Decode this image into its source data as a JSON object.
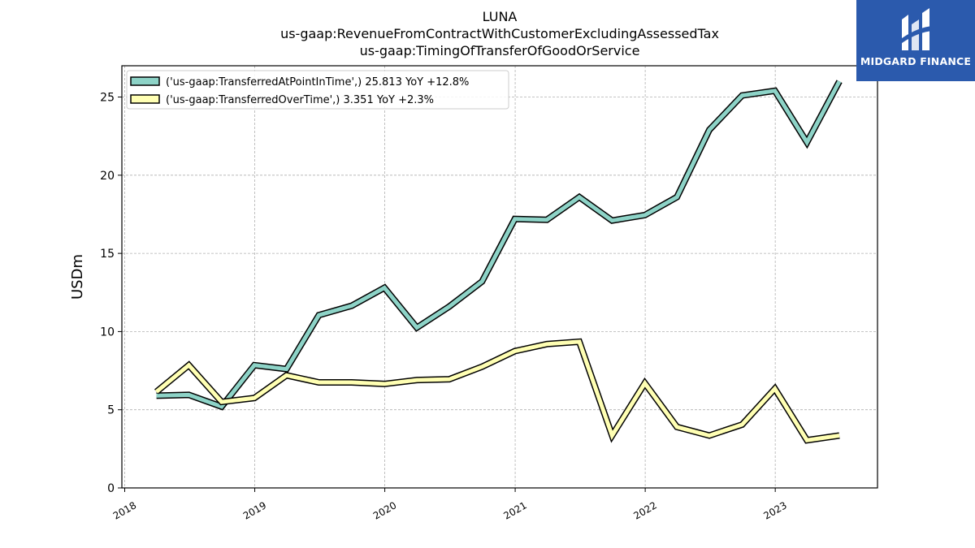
{
  "colors": {
    "series1": "#8dd3c7",
    "series2": "#ffffb3",
    "outline": "#000000",
    "grid": "#b0b0b0",
    "logo_bg": "#2b5aad"
  },
  "logo": {
    "text": "MIDGARD FINANCE",
    "icon": "midgard-finance-logo-mark"
  },
  "chart_data": {
    "type": "line",
    "title_lines": [
      "LUNA",
      "us-gaap:RevenueFromContractWithCustomerExcludingAssessedTax",
      "us-gaap:TimingOfTransferOfGoodOrService"
    ],
    "xlabel": "",
    "ylabel": "USDm",
    "xlim": [
      "2017-12-24",
      "2023-10-15"
    ],
    "ylim": [
      0,
      27
    ],
    "x_ticks": [
      "2018",
      "2019",
      "2020",
      "2021",
      "2022",
      "2023"
    ],
    "y_ticks": [
      "0",
      "5",
      "10",
      "15",
      "20",
      "25"
    ],
    "grid": true,
    "legend_position": "top-left",
    "x": [
      "2018-03-31",
      "2018-06-30",
      "2018-09-30",
      "2018-12-31",
      "2019-03-31",
      "2019-06-30",
      "2019-09-30",
      "2019-12-31",
      "2020-03-31",
      "2020-06-30",
      "2020-09-30",
      "2020-12-31",
      "2021-03-31",
      "2021-06-30",
      "2021-09-30",
      "2021-12-31",
      "2022-03-31",
      "2022-06-30",
      "2022-09-30",
      "2022-12-31",
      "2023-03-31",
      "2023-06-30"
    ],
    "series": [
      {
        "name": "('us-gaap:TransferredAtPointInTime',) 25.813 YoY +12.8%",
        "values": [
          5.9,
          5.95,
          5.2,
          7.85,
          7.6,
          11.05,
          11.65,
          12.8,
          10.25,
          11.6,
          13.2,
          17.2,
          17.15,
          18.6,
          17.1,
          17.45,
          18.6,
          22.9,
          25.1,
          25.4,
          22.1,
          26.0
        ]
      },
      {
        "name": "('us-gaap:TransferredOverTime',) 3.351 YoY +2.3%",
        "values": [
          6.15,
          7.85,
          5.5,
          5.75,
          7.2,
          6.75,
          6.75,
          6.65,
          6.9,
          6.95,
          7.75,
          8.75,
          9.2,
          9.35,
          3.35,
          6.7,
          3.9,
          3.35,
          4.05,
          6.35,
          3.05,
          3.35
        ]
      }
    ]
  }
}
